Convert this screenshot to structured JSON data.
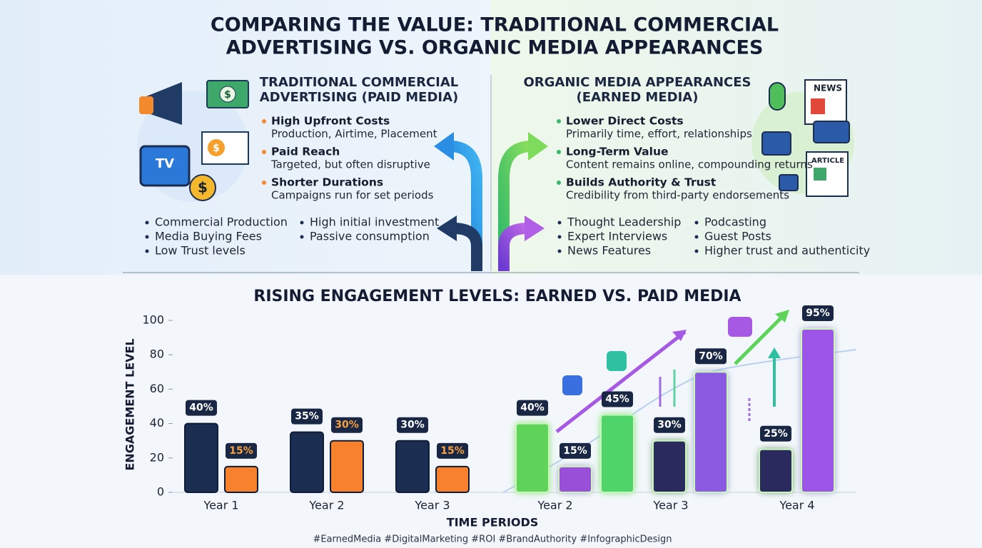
{
  "title": [
    "COMPARING THE VALUE: TRADITIONAL COMMERCIAL",
    "ADVERTISING VS. ORGANIC MEDIA APPEARANCES"
  ],
  "icons": {
    "tv": "TV",
    "dollar": "$",
    "news": "NEWS",
    "article": "ARTICLE"
  },
  "paid": {
    "heading": [
      "TRADITIONAL COMMERCIAL",
      "ADVERTISING (PAID MEDIA)"
    ],
    "points": [
      {
        "title": "High Upfront Costs",
        "text": "Production, Airtime, Placement"
      },
      {
        "title": "Paid Reach",
        "text": "Targeted, but often disruptive"
      },
      {
        "title": "Shorter Durations",
        "text": "Campaigns run for set periods"
      }
    ],
    "bullets": [
      [
        "Commercial Production",
        "Media Buying Fees",
        "Low Trust levels"
      ],
      [
        "High initial investment",
        "Passive consumption"
      ]
    ]
  },
  "earned": {
    "heading": [
      "ORGANIC MEDIA APPEARANCES",
      "(EARNED MEDIA)"
    ],
    "points": [
      {
        "title": "Lower Direct Costs",
        "text": "Primarily time, effort, relationships"
      },
      {
        "title": "Long-Term Value",
        "text": "Content remains online, compounding returns"
      },
      {
        "title": "Builds Authority & Trust",
        "text": "Credibility from third-party endorsements"
      }
    ],
    "bullets": [
      [
        "Thought Leadership",
        "Expert Interviews",
        "News Features"
      ],
      [
        "Podcasting",
        "Guest Posts",
        "Higher trust and authenticity"
      ]
    ]
  },
  "chart_data": {
    "type": "bar",
    "title": "RISING ENGAGEMENT LEVELS: EARNED VS. PAID MEDIA",
    "y_label": "ENGAGEMENT LEVEL",
    "x_label": "TIME PERIODS",
    "categories": [
      "Year 1",
      null,
      "Year 2",
      null,
      "Year 3",
      null,
      "Year 2",
      null,
      null,
      "Year 3",
      null,
      "Year 4",
      null
    ],
    "values": [
      40,
      15,
      35,
      30,
      30,
      15,
      40,
      15,
      45,
      30,
      70,
      25,
      95
    ],
    "value_labels": [
      "40%",
      "15%",
      "35%",
      "30%",
      "30%",
      "15%",
      "40%",
      "15%",
      "45%",
      "30%",
      "70%",
      "25%",
      "95%"
    ],
    "colors": [
      "#1c2d52",
      "#f7812c",
      "#1c2d52",
      "#f7812c",
      "#1c2d52",
      "#f7812c",
      "#5fd35a",
      "#9a4fd8",
      "#4fd46a",
      "#2a2a5e",
      "#8a5ae0",
      "#2a2a5e",
      "#9c55e6"
    ],
    "ylim": [
      0,
      100
    ],
    "yticks": [
      0,
      20,
      40,
      60,
      80,
      100
    ]
  },
  "hashtags": "#EarnedMedia #DigitalMarketing #ROI #BrandAuthority #InfographicDesign"
}
